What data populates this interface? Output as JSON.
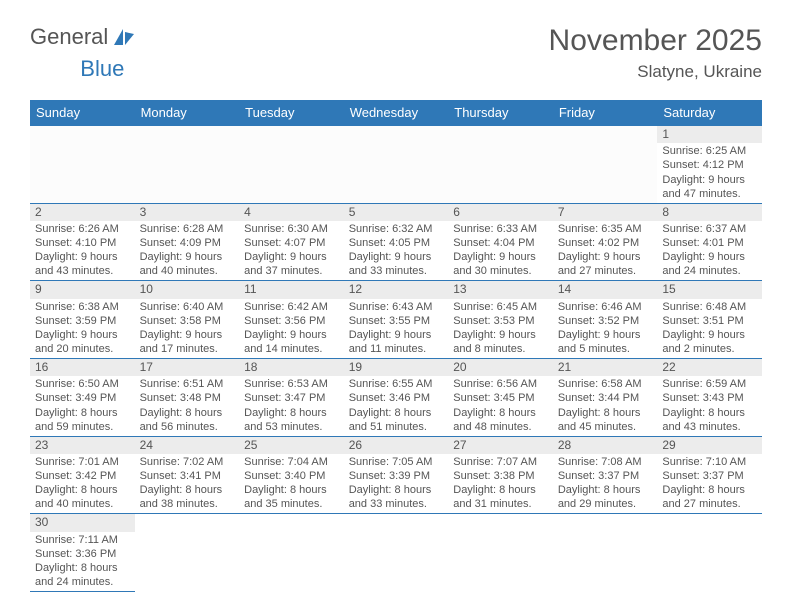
{
  "brand": {
    "part1": "General",
    "part2": "Blue"
  },
  "title": {
    "month": "November 2025",
    "location": "Slatyne, Ukraine"
  },
  "colors": {
    "accent": "#2f78b7",
    "text": "#555555",
    "headerRowBg": "#ececec",
    "pageBg": "#ffffff"
  },
  "days_of_week": [
    "Sunday",
    "Monday",
    "Tuesday",
    "Wednesday",
    "Thursday",
    "Friday",
    "Saturday"
  ],
  "typography": {
    "title_fontsize": 30,
    "loc_fontsize": 17,
    "th_fontsize": 13,
    "cell_fontsize": 11
  },
  "leading_blanks": 6,
  "trailing_blanks": 6,
  "days": [
    {
      "n": "1",
      "sunrise": "Sunrise: 6:25 AM",
      "sunset": "Sunset: 4:12 PM",
      "daylight": "Daylight: 9 hours and 47 minutes."
    },
    {
      "n": "2",
      "sunrise": "Sunrise: 6:26 AM",
      "sunset": "Sunset: 4:10 PM",
      "daylight": "Daylight: 9 hours and 43 minutes."
    },
    {
      "n": "3",
      "sunrise": "Sunrise: 6:28 AM",
      "sunset": "Sunset: 4:09 PM",
      "daylight": "Daylight: 9 hours and 40 minutes."
    },
    {
      "n": "4",
      "sunrise": "Sunrise: 6:30 AM",
      "sunset": "Sunset: 4:07 PM",
      "daylight": "Daylight: 9 hours and 37 minutes."
    },
    {
      "n": "5",
      "sunrise": "Sunrise: 6:32 AM",
      "sunset": "Sunset: 4:05 PM",
      "daylight": "Daylight: 9 hours and 33 minutes."
    },
    {
      "n": "6",
      "sunrise": "Sunrise: 6:33 AM",
      "sunset": "Sunset: 4:04 PM",
      "daylight": "Daylight: 9 hours and 30 minutes."
    },
    {
      "n": "7",
      "sunrise": "Sunrise: 6:35 AM",
      "sunset": "Sunset: 4:02 PM",
      "daylight": "Daylight: 9 hours and 27 minutes."
    },
    {
      "n": "8",
      "sunrise": "Sunrise: 6:37 AM",
      "sunset": "Sunset: 4:01 PM",
      "daylight": "Daylight: 9 hours and 24 minutes."
    },
    {
      "n": "9",
      "sunrise": "Sunrise: 6:38 AM",
      "sunset": "Sunset: 3:59 PM",
      "daylight": "Daylight: 9 hours and 20 minutes."
    },
    {
      "n": "10",
      "sunrise": "Sunrise: 6:40 AM",
      "sunset": "Sunset: 3:58 PM",
      "daylight": "Daylight: 9 hours and 17 minutes."
    },
    {
      "n": "11",
      "sunrise": "Sunrise: 6:42 AM",
      "sunset": "Sunset: 3:56 PM",
      "daylight": "Daylight: 9 hours and 14 minutes."
    },
    {
      "n": "12",
      "sunrise": "Sunrise: 6:43 AM",
      "sunset": "Sunset: 3:55 PM",
      "daylight": "Daylight: 9 hours and 11 minutes."
    },
    {
      "n": "13",
      "sunrise": "Sunrise: 6:45 AM",
      "sunset": "Sunset: 3:53 PM",
      "daylight": "Daylight: 9 hours and 8 minutes."
    },
    {
      "n": "14",
      "sunrise": "Sunrise: 6:46 AM",
      "sunset": "Sunset: 3:52 PM",
      "daylight": "Daylight: 9 hours and 5 minutes."
    },
    {
      "n": "15",
      "sunrise": "Sunrise: 6:48 AM",
      "sunset": "Sunset: 3:51 PM",
      "daylight": "Daylight: 9 hours and 2 minutes."
    },
    {
      "n": "16",
      "sunrise": "Sunrise: 6:50 AM",
      "sunset": "Sunset: 3:49 PM",
      "daylight": "Daylight: 8 hours and 59 minutes."
    },
    {
      "n": "17",
      "sunrise": "Sunrise: 6:51 AM",
      "sunset": "Sunset: 3:48 PM",
      "daylight": "Daylight: 8 hours and 56 minutes."
    },
    {
      "n": "18",
      "sunrise": "Sunrise: 6:53 AM",
      "sunset": "Sunset: 3:47 PM",
      "daylight": "Daylight: 8 hours and 53 minutes."
    },
    {
      "n": "19",
      "sunrise": "Sunrise: 6:55 AM",
      "sunset": "Sunset: 3:46 PM",
      "daylight": "Daylight: 8 hours and 51 minutes."
    },
    {
      "n": "20",
      "sunrise": "Sunrise: 6:56 AM",
      "sunset": "Sunset: 3:45 PM",
      "daylight": "Daylight: 8 hours and 48 minutes."
    },
    {
      "n": "21",
      "sunrise": "Sunrise: 6:58 AM",
      "sunset": "Sunset: 3:44 PM",
      "daylight": "Daylight: 8 hours and 45 minutes."
    },
    {
      "n": "22",
      "sunrise": "Sunrise: 6:59 AM",
      "sunset": "Sunset: 3:43 PM",
      "daylight": "Daylight: 8 hours and 43 minutes."
    },
    {
      "n": "23",
      "sunrise": "Sunrise: 7:01 AM",
      "sunset": "Sunset: 3:42 PM",
      "daylight": "Daylight: 8 hours and 40 minutes."
    },
    {
      "n": "24",
      "sunrise": "Sunrise: 7:02 AM",
      "sunset": "Sunset: 3:41 PM",
      "daylight": "Daylight: 8 hours and 38 minutes."
    },
    {
      "n": "25",
      "sunrise": "Sunrise: 7:04 AM",
      "sunset": "Sunset: 3:40 PM",
      "daylight": "Daylight: 8 hours and 35 minutes."
    },
    {
      "n": "26",
      "sunrise": "Sunrise: 7:05 AM",
      "sunset": "Sunset: 3:39 PM",
      "daylight": "Daylight: 8 hours and 33 minutes."
    },
    {
      "n": "27",
      "sunrise": "Sunrise: 7:07 AM",
      "sunset": "Sunset: 3:38 PM",
      "daylight": "Daylight: 8 hours and 31 minutes."
    },
    {
      "n": "28",
      "sunrise": "Sunrise: 7:08 AM",
      "sunset": "Sunset: 3:37 PM",
      "daylight": "Daylight: 8 hours and 29 minutes."
    },
    {
      "n": "29",
      "sunrise": "Sunrise: 7:10 AM",
      "sunset": "Sunset: 3:37 PM",
      "daylight": "Daylight: 8 hours and 27 minutes."
    },
    {
      "n": "30",
      "sunrise": "Sunrise: 7:11 AM",
      "sunset": "Sunset: 3:36 PM",
      "daylight": "Daylight: 8 hours and 24 minutes."
    }
  ]
}
